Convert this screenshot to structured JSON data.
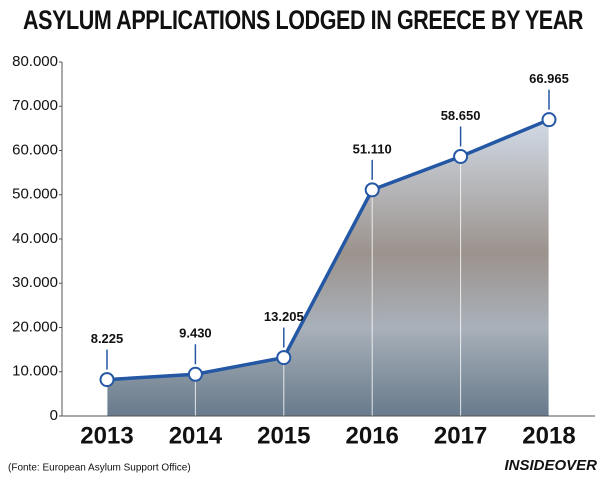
{
  "chart_data": {
    "type": "line",
    "title": "ASYLUM APPLICATIONS LODGED IN GREECE BY YEAR",
    "source": "(Fonte: European Asylum Support Office)",
    "logo": "INSIDEOVER",
    "categories": [
      "2013",
      "2014",
      "2015",
      "2016",
      "2017",
      "2018"
    ],
    "series": [
      {
        "name": "Asylum applications",
        "color": "#2457a4",
        "values": [
          8225,
          9430,
          13205,
          51110,
          58650,
          66965
        ],
        "value_labels": [
          "8.225",
          "9.430",
          "13.205",
          "51.110",
          "58.650",
          "66.965"
        ]
      }
    ],
    "ylim": [
      0,
      80000
    ],
    "yticks": [
      0,
      {
        "value": 10000,
        "label": "10.000"
      },
      {
        "value": 20000,
        "label": "20.000"
      },
      {
        "value": 30000,
        "label": "30.000"
      },
      {
        "value": 40000,
        "label": "40.000"
      },
      {
        "value": 50000,
        "label": "50.000"
      },
      {
        "value": 60000,
        "label": "60.000"
      },
      {
        "value": 70000,
        "label": "70.000"
      },
      {
        "value": 80000,
        "label": "80.000"
      }
    ],
    "grid": false
  }
}
